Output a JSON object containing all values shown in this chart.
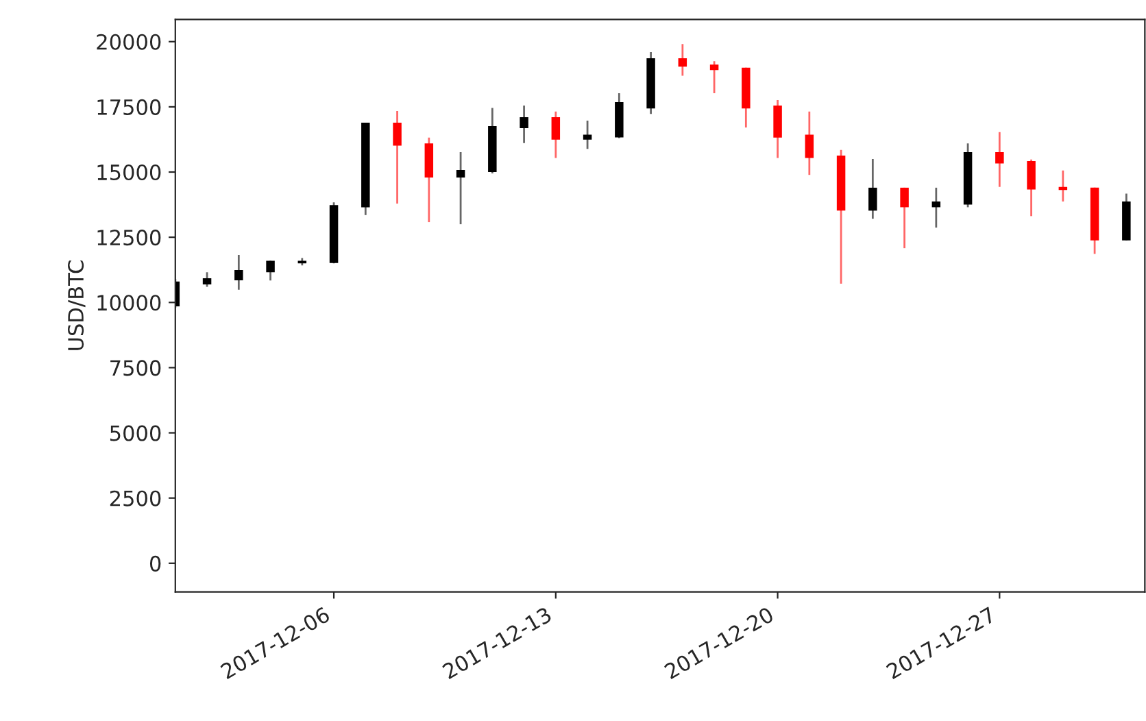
{
  "chart_data": {
    "type": "candlestick",
    "ylabel": "USD/BTC",
    "x": [
      "2017-12-01",
      "2017-12-02",
      "2017-12-03",
      "2017-12-04",
      "2017-12-05",
      "2017-12-06",
      "2017-12-07",
      "2017-12-08",
      "2017-12-09",
      "2017-12-10",
      "2017-12-11",
      "2017-12-12",
      "2017-12-13",
      "2017-12-14",
      "2017-12-15",
      "2017-12-16",
      "2017-12-17",
      "2017-12-18",
      "2017-12-19",
      "2017-12-20",
      "2017-12-21",
      "2017-12-22",
      "2017-12-23",
      "2017-12-24",
      "2017-12-25",
      "2017-12-26",
      "2017-12-27",
      "2017-12-28",
      "2017-12-29",
      "2017-12-30",
      "2017-12-31"
    ],
    "ohlc": [
      [
        9850,
        10900,
        9800,
        10800
      ],
      [
        10690,
        11160,
        10600,
        10930
      ],
      [
        10850,
        11820,
        10490,
        11240
      ],
      [
        11160,
        11600,
        10840,
        11600
      ],
      [
        11500,
        11700,
        11420,
        11600
      ],
      [
        11510,
        13840,
        11500,
        13730
      ],
      [
        13650,
        16890,
        13350,
        16890
      ],
      [
        16890,
        17340,
        13790,
        16010
      ],
      [
        16100,
        16320,
        13080,
        14790
      ],
      [
        14790,
        15760,
        13000,
        15080
      ],
      [
        15000,
        17460,
        14950,
        16760
      ],
      [
        16680,
        17550,
        16110,
        17100
      ],
      [
        17100,
        17320,
        15540,
        16240
      ],
      [
        16240,
        16970,
        15890,
        16430
      ],
      [
        16330,
        18020,
        16300,
        17680
      ],
      [
        17440,
        19600,
        17230,
        19360
      ],
      [
        19360,
        19910,
        18690,
        19040
      ],
      [
        19120,
        19250,
        18020,
        18910
      ],
      [
        19000,
        19000,
        16710,
        17440
      ],
      [
        17550,
        17760,
        15540,
        16320
      ],
      [
        16430,
        17320,
        14890,
        15540
      ],
      [
        15630,
        15850,
        10720,
        13520
      ],
      [
        13520,
        15500,
        13210,
        14400
      ],
      [
        14400,
        14400,
        12080,
        13650
      ],
      [
        13650,
        14400,
        12870,
        13870
      ],
      [
        13750,
        16100,
        13650,
        15760
      ],
      [
        15760,
        16530,
        14430,
        15330
      ],
      [
        15420,
        15480,
        13310,
        14330
      ],
      [
        14430,
        15060,
        13870,
        14310
      ],
      [
        14400,
        14400,
        11860,
        12380
      ],
      [
        12380,
        14170,
        12380,
        13870
      ]
    ],
    "colors": [
      "#000000",
      "#000000",
      "#000000",
      "#000000",
      "#000000",
      "#000000",
      "#000000",
      "#ff0000",
      "#ff0000",
      "#000000",
      "#000000",
      "#000000",
      "#ff0000",
      "#000000",
      "#000000",
      "#000000",
      "#ff0000",
      "#ff0000",
      "#ff0000",
      "#ff0000",
      "#ff0000",
      "#ff0000",
      "#000000",
      "#ff0000",
      "#000000",
      "#000000",
      "#ff0000",
      "#ff0000",
      "#ff0000",
      "#ff0000",
      "#000000"
    ],
    "xlim": [
      "2017-12-01",
      "2017-12-31T14:00"
    ],
    "xticks": [
      "2017-12-06",
      "2017-12-13",
      "2017-12-20",
      "2017-12-27"
    ],
    "ylim": [
      -1100,
      20850
    ],
    "yticks": [
      0,
      2500,
      5000,
      7500,
      10000,
      12500,
      15000,
      17500,
      20000
    ],
    "grid": false,
    "legend": false
  }
}
